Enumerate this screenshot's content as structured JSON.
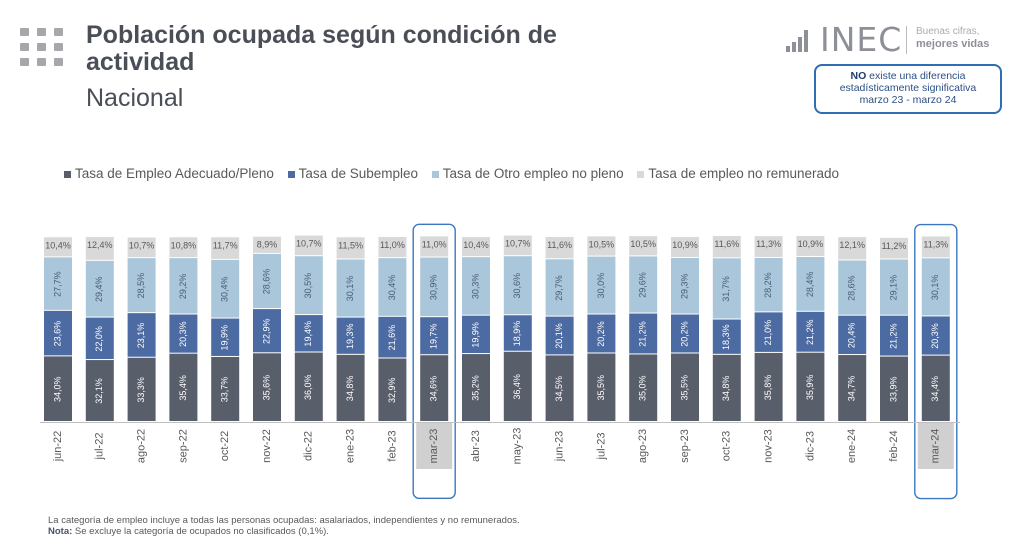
{
  "header": {
    "title": "Población ocupada según condición de actividad",
    "subtitle": "Nacional"
  },
  "logo": {
    "name": "INEC",
    "tagline_1": "Buenas cifras,",
    "tagline_2": "mejores vidas"
  },
  "significance_note": {
    "bold": "NO",
    "text": "existe una diferencia estadísticamente significativa",
    "period": "marzo 23 - marzo 24"
  },
  "colors": {
    "adecuado": "#595e6b",
    "subempleo": "#4d6ba3",
    "otro": "#a9c6da",
    "no_remunerado": "#d9d9d9",
    "highlight": "#3a78c2"
  },
  "chart_data": {
    "type": "bar",
    "stacked": true,
    "categories": [
      "jun-22",
      "jul-22",
      "ago-22",
      "sep-22",
      "oct-22",
      "nov-22",
      "dic-22",
      "ene-23",
      "feb-23",
      "mar-23",
      "abr-23",
      "may-23",
      "jun-23",
      "jul-23",
      "ago-23",
      "sep-23",
      "oct-23",
      "nov-23",
      "dic-23",
      "ene-24",
      "feb-24",
      "mar-24"
    ],
    "highlighted": [
      "mar-23",
      "mar-24"
    ],
    "series": [
      {
        "name": "Tasa de Empleo Adecuado/Pleno",
        "values": [
          34.0,
          32.1,
          33.3,
          35.4,
          33.7,
          35.6,
          36.0,
          34.8,
          32.9,
          34.6,
          35.2,
          36.4,
          34.5,
          35.5,
          35.0,
          35.5,
          34.8,
          35.8,
          35.9,
          34.7,
          33.9,
          34.4
        ]
      },
      {
        "name": "Tasa de Subempleo",
        "values": [
          23.6,
          22.0,
          23.1,
          20.3,
          19.9,
          22.9,
          19.4,
          19.3,
          21.6,
          19.7,
          19.9,
          18.9,
          20.1,
          20.2,
          21.2,
          20.2,
          18.3,
          21.0,
          21.2,
          20.4,
          21.2,
          20.3
        ]
      },
      {
        "name": "Tasa de Otro empleo no pleno",
        "values": [
          27.7,
          29.4,
          28.5,
          29.2,
          30.4,
          28.6,
          30.5,
          30.1,
          30.4,
          30.9,
          30.3,
          30.6,
          29.7,
          30.0,
          29.6,
          29.3,
          31.7,
          28.2,
          28.4,
          28.6,
          29.1,
          30.1
        ]
      },
      {
        "name": "Tasa de empleo no remunerado",
        "values": [
          10.4,
          12.4,
          10.7,
          10.8,
          11.7,
          8.9,
          10.7,
          11.5,
          11.0,
          11.0,
          10.4,
          10.7,
          11.6,
          10.5,
          10.5,
          10.9,
          11.6,
          11.3,
          10.9,
          12.1,
          11.2,
          11.3
        ]
      }
    ],
    "legend_position": "top",
    "grid": false,
    "value_suffix": "%"
  },
  "footer": {
    "line1": "La categoría de empleo incluye a todas las personas ocupadas: asalariados, independientes y no remunerados.",
    "note_label": "Nota:",
    "note_text": "Se excluye la categoría de ocupados no clasificados (0,1%)."
  }
}
